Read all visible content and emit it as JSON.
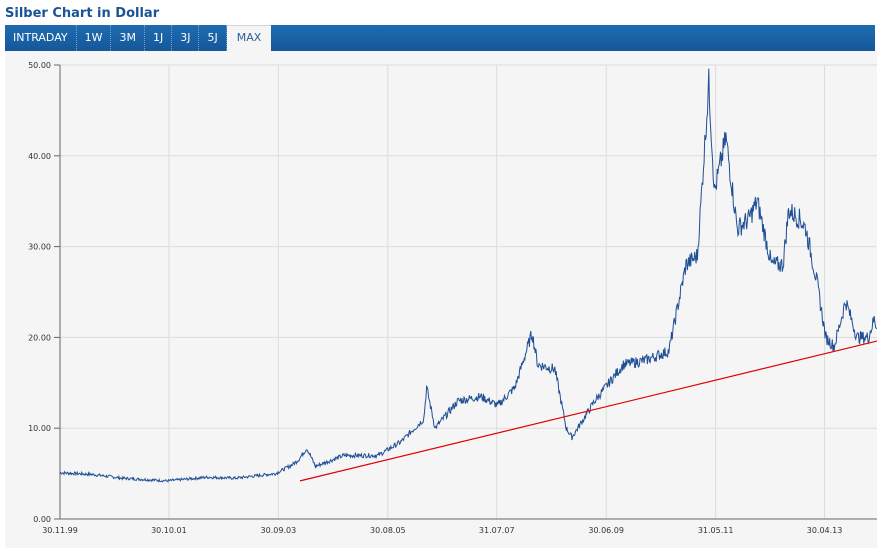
{
  "title": "Silber Chart in Dollar",
  "tabs": [
    "INTRADAY",
    "1W",
    "3M",
    "1J",
    "3J",
    "5J",
    "MAX"
  ],
  "active_tab": "MAX",
  "chart_data": {
    "type": "line",
    "title": "Silber Chart in Dollar",
    "ylim": [
      0,
      50
    ],
    "yticks": [
      "0.00",
      "10.00",
      "20.00",
      "30.00",
      "40.00",
      "50.00"
    ],
    "ytick_values": [
      0,
      10,
      20,
      30,
      40,
      50
    ],
    "xticks": [
      "30.11.99",
      "30.10.01",
      "30.09.03",
      "30.08.05",
      "31.07.07",
      "30.06.09",
      "31.05.11",
      "30.04.13"
    ],
    "xtick_values": [
      1999.92,
      2001.83,
      2003.75,
      2005.67,
      2007.58,
      2009.5,
      2011.42,
      2013.33
    ],
    "xlim": [
      1999.92,
      2014.25
    ],
    "grid": true,
    "series": [
      {
        "name": "Silber",
        "color": "#1f4f94",
        "points": [
          [
            1999.92,
            5.1
          ],
          [
            2000.5,
            4.9
          ],
          [
            2001.0,
            4.5
          ],
          [
            2001.8,
            4.2
          ],
          [
            2002.5,
            4.6
          ],
          [
            2003.0,
            4.5
          ],
          [
            2003.7,
            5.0
          ],
          [
            2004.0,
            6.0
          ],
          [
            2004.1,
            6.5
          ],
          [
            2004.25,
            7.8
          ],
          [
            2004.4,
            5.8
          ],
          [
            2004.9,
            7.0
          ],
          [
            2005.5,
            7.0
          ],
          [
            2005.9,
            8.5
          ],
          [
            2006.3,
            11
          ],
          [
            2006.35,
            14.5
          ],
          [
            2006.5,
            10
          ],
          [
            2006.9,
            13
          ],
          [
            2007.3,
            13.5
          ],
          [
            2007.6,
            12.5
          ],
          [
            2007.9,
            14.5
          ],
          [
            2008.2,
            20.5
          ],
          [
            2008.3,
            17
          ],
          [
            2008.6,
            16.5
          ],
          [
            2008.8,
            10
          ],
          [
            2008.9,
            9
          ],
          [
            2009.3,
            13
          ],
          [
            2009.8,
            17
          ],
          [
            2010.2,
            17.5
          ],
          [
            2010.6,
            18.5
          ],
          [
            2010.9,
            28
          ],
          [
            2011.1,
            29
          ],
          [
            2011.3,
            48
          ],
          [
            2011.4,
            36
          ],
          [
            2011.6,
            42
          ],
          [
            2011.8,
            32
          ],
          [
            2012.0,
            33
          ],
          [
            2012.15,
            35
          ],
          [
            2012.4,
            28
          ],
          [
            2012.6,
            28
          ],
          [
            2012.7,
            34
          ],
          [
            2012.9,
            33
          ],
          [
            2013.0,
            32
          ],
          [
            2013.2,
            26
          ],
          [
            2013.35,
            20
          ],
          [
            2013.5,
            19
          ],
          [
            2013.7,
            24
          ],
          [
            2013.9,
            20
          ],
          [
            2014.1,
            20
          ],
          [
            2014.2,
            22
          ],
          [
            2014.25,
            21
          ]
        ]
      }
    ],
    "trendline": {
      "color": "#e00000",
      "points": [
        [
          2004.13,
          4.2
        ],
        [
          2014.25,
          19.6
        ]
      ]
    }
  }
}
